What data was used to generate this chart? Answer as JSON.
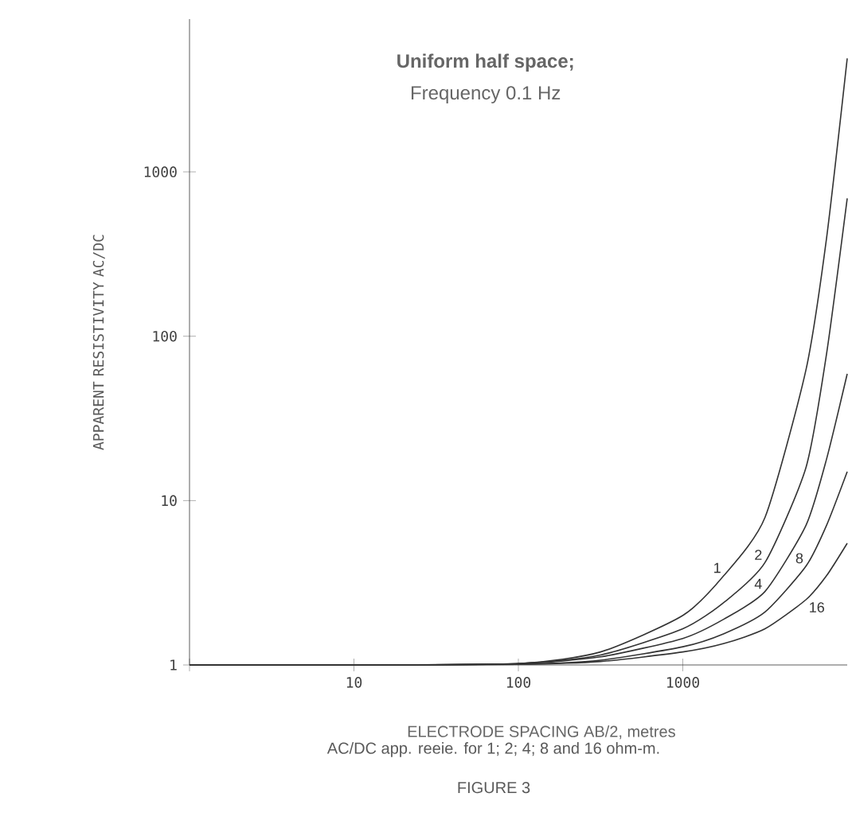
{
  "chart_data": {
    "type": "line",
    "title": "Uniform half space;",
    "subtitle": "Frequency 0.1 Hz",
    "xlabel": "ELECTRODE SPACING AB/2, metres",
    "ylabel": "APPARENT RESISTIVITY AC/DC",
    "annotations": [
      "AC/DC app. reeie. for 1; 2; 4; 8 and 16 ohm-m.",
      "FIGURE 3"
    ],
    "x": [
      1,
      10,
      100,
      316,
      1000,
      1778,
      3162,
      5623,
      7500,
      10000
    ],
    "series": [
      {
        "name": "1",
        "color": "#333333",
        "values": [
          1,
          1,
          1.02,
          1.2,
          2.0,
          3.5,
          7.9,
          63,
          400,
          4900
        ]
      },
      {
        "name": "2",
        "color": "#333333",
        "values": [
          1,
          1,
          1.02,
          1.15,
          1.66,
          2.4,
          4.2,
          16,
          79,
          690
        ]
      },
      {
        "name": "4",
        "color": "#333333",
        "values": [
          1,
          1,
          1.02,
          1.12,
          1.45,
          1.9,
          2.8,
          7.1,
          18,
          59
        ]
      },
      {
        "name": "8",
        "color": "#333333",
        "values": [
          1,
          1,
          1.01,
          1.07,
          1.29,
          1.55,
          2.1,
          4.0,
          7.1,
          15
        ]
      },
      {
        "name": "16",
        "color": "#333333",
        "values": [
          1,
          1,
          1.01,
          1.05,
          1.2,
          1.35,
          1.66,
          2.5,
          3.5,
          5.5
        ]
      }
    ],
    "xlim": [
      1,
      10000
    ],
    "ylim": [
      1,
      8500
    ],
    "xticks": [
      {
        "value": 1,
        "label": null
      },
      10,
      100,
      1000
    ],
    "yticks": [
      1,
      10,
      100,
      1000
    ],
    "log": "xy",
    "grid": false,
    "legend": false
  }
}
